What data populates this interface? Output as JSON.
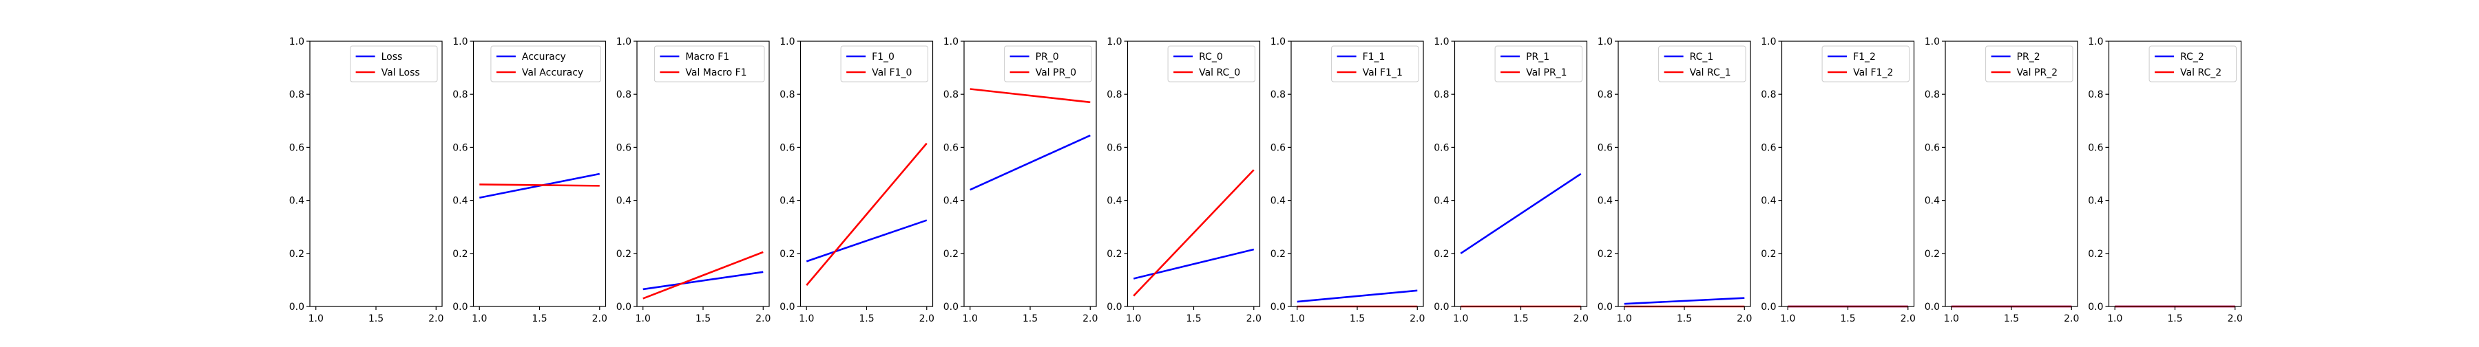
{
  "colors": {
    "train": "#0000ff",
    "val": "#ff0000",
    "axis": "#000000",
    "background": "#ffffff"
  },
  "chart_data": [
    {
      "type": "line",
      "x": [
        1,
        2
      ],
      "xlim": [
        0.95,
        2.05
      ],
      "ylim": [
        0,
        1
      ],
      "xticks": [
        "1.0",
        "1.5",
        "2.0"
      ],
      "yticks": [
        "0.0",
        "0.2",
        "0.4",
        "0.6",
        "0.8",
        "1.0"
      ],
      "grid": false,
      "legend_position": "top-right",
      "series": [
        {
          "name": "Loss",
          "values": [
            null,
            null
          ]
        },
        {
          "name": "Val Loss",
          "values": [
            null,
            null
          ]
        }
      ]
    },
    {
      "type": "line",
      "x": [
        1,
        2
      ],
      "xlim": [
        0.95,
        2.05
      ],
      "ylim": [
        0,
        1
      ],
      "xticks": [
        "1.0",
        "1.5",
        "2.0"
      ],
      "yticks": [
        "0.0",
        "0.2",
        "0.4",
        "0.6",
        "0.8",
        "1.0"
      ],
      "grid": false,
      "legend_position": "top-right",
      "series": [
        {
          "name": "Accuracy",
          "values": [
            0.41,
            0.5
          ]
        },
        {
          "name": "Val Accuracy",
          "values": [
            0.46,
            0.455
          ]
        }
      ]
    },
    {
      "type": "line",
      "x": [
        1,
        2
      ],
      "xlim": [
        0.95,
        2.05
      ],
      "ylim": [
        0,
        1
      ],
      "xticks": [
        "1.0",
        "1.5",
        "2.0"
      ],
      "yticks": [
        "0.0",
        "0.2",
        "0.4",
        "0.6",
        "0.8",
        "1.0"
      ],
      "grid": false,
      "legend_position": "top-right",
      "series": [
        {
          "name": "Macro F1",
          "values": [
            0.065,
            0.13
          ]
        },
        {
          "name": "Val Macro F1",
          "values": [
            0.03,
            0.205
          ]
        }
      ]
    },
    {
      "type": "line",
      "x": [
        1,
        2
      ],
      "xlim": [
        0.95,
        2.05
      ],
      "ylim": [
        0,
        1
      ],
      "xticks": [
        "1.0",
        "1.5",
        "2.0"
      ],
      "yticks": [
        "0.0",
        "0.2",
        "0.4",
        "0.6",
        "0.8",
        "1.0"
      ],
      "grid": false,
      "legend_position": "top-right",
      "series": [
        {
          "name": "F1_0",
          "values": [
            0.17,
            0.325
          ]
        },
        {
          "name": "Val F1_0",
          "values": [
            0.08,
            0.615
          ]
        }
      ]
    },
    {
      "type": "line",
      "x": [
        1,
        2
      ],
      "xlim": [
        0.95,
        2.05
      ],
      "ylim": [
        0,
        1
      ],
      "xticks": [
        "1.0",
        "1.5",
        "2.0"
      ],
      "yticks": [
        "0.0",
        "0.2",
        "0.4",
        "0.6",
        "0.8",
        "1.0"
      ],
      "grid": false,
      "legend_position": "top-right",
      "series": [
        {
          "name": "PR_0",
          "values": [
            0.44,
            0.645
          ]
        },
        {
          "name": "Val PR_0",
          "values": [
            0.82,
            0.77
          ]
        }
      ]
    },
    {
      "type": "line",
      "x": [
        1,
        2
      ],
      "xlim": [
        0.95,
        2.05
      ],
      "ylim": [
        0,
        1
      ],
      "xticks": [
        "1.0",
        "1.5",
        "2.0"
      ],
      "yticks": [
        "0.0",
        "0.2",
        "0.4",
        "0.6",
        "0.8",
        "1.0"
      ],
      "grid": false,
      "legend_position": "top-right",
      "series": [
        {
          "name": "RC_0",
          "values": [
            0.105,
            0.215
          ]
        },
        {
          "name": "Val RC_0",
          "values": [
            0.04,
            0.515
          ]
        }
      ]
    },
    {
      "type": "line",
      "x": [
        1,
        2
      ],
      "xlim": [
        0.95,
        2.05
      ],
      "ylim": [
        0,
        1
      ],
      "xticks": [
        "1.0",
        "1.5",
        "2.0"
      ],
      "yticks": [
        "0.0",
        "0.2",
        "0.4",
        "0.6",
        "0.8",
        "1.0"
      ],
      "grid": false,
      "legend_position": "top-right",
      "series": [
        {
          "name": "F1_1",
          "values": [
            0.018,
            0.06
          ]
        },
        {
          "name": "Val F1_1",
          "values": [
            0,
            0
          ]
        }
      ]
    },
    {
      "type": "line",
      "x": [
        1,
        2
      ],
      "xlim": [
        0.95,
        2.05
      ],
      "ylim": [
        0,
        1
      ],
      "xticks": [
        "1.0",
        "1.5",
        "2.0"
      ],
      "yticks": [
        "0.0",
        "0.2",
        "0.4",
        "0.6",
        "0.8",
        "1.0"
      ],
      "grid": false,
      "legend_position": "top-right",
      "series": [
        {
          "name": "PR_1",
          "values": [
            0.2,
            0.5
          ]
        },
        {
          "name": "Val PR_1",
          "values": [
            0,
            0
          ]
        }
      ]
    },
    {
      "type": "line",
      "x": [
        1,
        2
      ],
      "xlim": [
        0.95,
        2.05
      ],
      "ylim": [
        0,
        1
      ],
      "xticks": [
        "1.0",
        "1.5",
        "2.0"
      ],
      "yticks": [
        "0.0",
        "0.2",
        "0.4",
        "0.6",
        "0.8",
        "1.0"
      ],
      "grid": false,
      "legend_position": "top-right",
      "series": [
        {
          "name": "RC_1",
          "values": [
            0.01,
            0.032
          ]
        },
        {
          "name": "Val RC_1",
          "values": [
            0,
            0
          ]
        }
      ]
    },
    {
      "type": "line",
      "x": [
        1,
        2
      ],
      "xlim": [
        0.95,
        2.05
      ],
      "ylim": [
        0,
        1
      ],
      "xticks": [
        "1.0",
        "1.5",
        "2.0"
      ],
      "yticks": [
        "0.0",
        "0.2",
        "0.4",
        "0.6",
        "0.8",
        "1.0"
      ],
      "grid": false,
      "legend_position": "top-right",
      "series": [
        {
          "name": "F1_2",
          "values": [
            0,
            0
          ]
        },
        {
          "name": "Val F1_2",
          "values": [
            0,
            0
          ]
        }
      ]
    },
    {
      "type": "line",
      "x": [
        1,
        2
      ],
      "xlim": [
        0.95,
        2.05
      ],
      "ylim": [
        0,
        1
      ],
      "xticks": [
        "1.0",
        "1.5",
        "2.0"
      ],
      "yticks": [
        "0.0",
        "0.2",
        "0.4",
        "0.6",
        "0.8",
        "1.0"
      ],
      "grid": false,
      "legend_position": "top-right",
      "series": [
        {
          "name": "PR_2",
          "values": [
            0,
            0
          ]
        },
        {
          "name": "Val PR_2",
          "values": [
            0,
            0
          ]
        }
      ]
    },
    {
      "type": "line",
      "x": [
        1,
        2
      ],
      "xlim": [
        0.95,
        2.05
      ],
      "ylim": [
        0,
        1
      ],
      "xticks": [
        "1.0",
        "1.5",
        "2.0"
      ],
      "yticks": [
        "0.0",
        "0.2",
        "0.4",
        "0.6",
        "0.8",
        "1.0"
      ],
      "grid": false,
      "legend_position": "top-right",
      "series": [
        {
          "name": "RC_2",
          "values": [
            0,
            0
          ]
        },
        {
          "name": "Val RC_2",
          "values": [
            0,
            0
          ]
        }
      ]
    }
  ]
}
